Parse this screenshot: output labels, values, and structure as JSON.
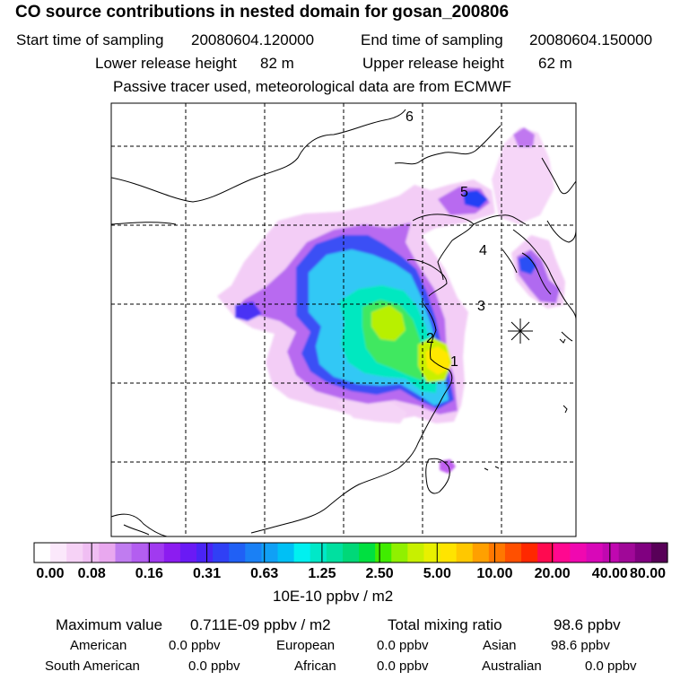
{
  "header": {
    "title": "CO  source contributions in nested domain for gosan_200806",
    "start_label": "Start time of sampling",
    "start_value": "20080604.120000",
    "end_label": "End time of sampling",
    "end_value": "20080604.150000",
    "lower_label": "Lower release height",
    "lower_value": "82 m",
    "upper_label": "Upper release height",
    "upper_value": "62 m",
    "note": "Passive tracer used, meteorological data are from ECMWF"
  },
  "map": {
    "track_labels": [
      "1",
      "2",
      "3",
      "4",
      "5",
      "6"
    ],
    "receptor_symbol": "star"
  },
  "colorbar": {
    "colors": [
      "#ffffff",
      "#fbe8fb",
      "#f6d2f6",
      "#f0bef3",
      "#e9a8ef",
      "#c07cf0",
      "#b35ef0",
      "#a13af0",
      "#8c1cf0",
      "#6a1af5",
      "#4a24f5",
      "#3040f5",
      "#2060f5",
      "#1a80f5",
      "#10a0f5",
      "#00c0f5",
      "#00f0f0",
      "#00e8c8",
      "#00e0a0",
      "#00d878",
      "#00e040",
      "#40ec00",
      "#90f000",
      "#c8f000",
      "#e8f000",
      "#ffe400",
      "#ffc800",
      "#ffa000",
      "#ff7800",
      "#ff5000",
      "#ff2800",
      "#ff0a50",
      "#ff0890",
      "#f008b0",
      "#d808b8",
      "#c008b0",
      "#a00898",
      "#800080",
      "#580058"
    ],
    "tick_labels": [
      "0.00",
      "0.08",
      "0.16",
      "0.31",
      "0.63",
      "1.25",
      "2.50",
      "5.00",
      "10.00",
      "20.00",
      "40.00",
      "80.00"
    ],
    "units": "10E-10 ppbv / m2"
  },
  "summary": {
    "max_label": "Maximum value",
    "max_value": "0.711E-09 ppbv / m2",
    "total_label": "Total mixing ratio",
    "total_value": "98.6 ppbv",
    "regions": [
      {
        "name": "American",
        "value": "0.0 ppbv"
      },
      {
        "name": "European",
        "value": "0.0 ppbv"
      },
      {
        "name": "Asian",
        "value": "98.6 ppbv"
      },
      {
        "name": "South American",
        "value": "0.0 ppbv"
      },
      {
        "name": "African",
        "value": "0.0 ppbv"
      },
      {
        "name": "Australian",
        "value": "0.0 ppbv"
      }
    ]
  }
}
